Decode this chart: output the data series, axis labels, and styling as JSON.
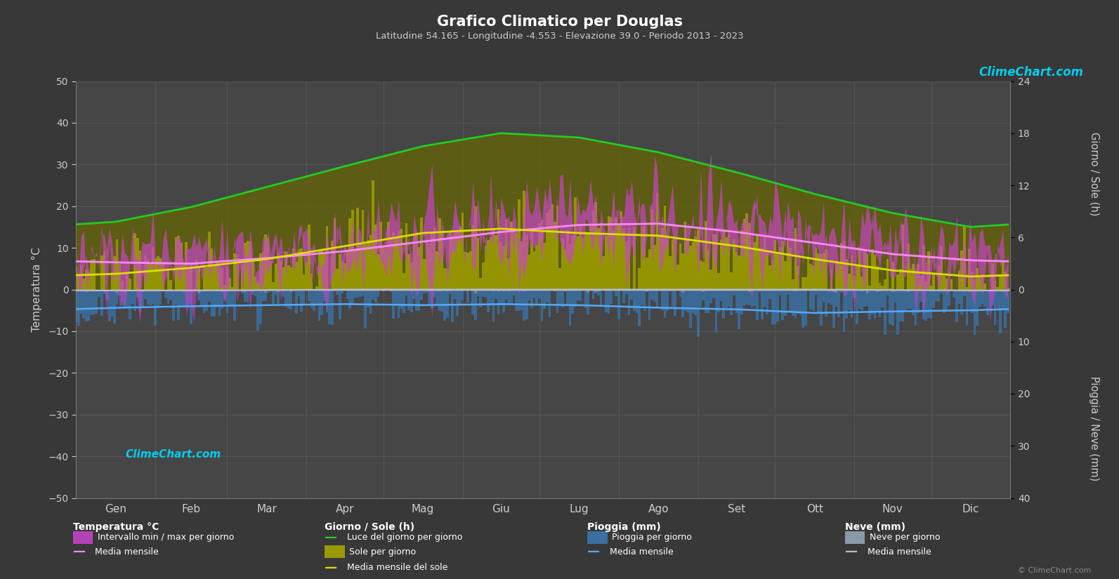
{
  "title": "Grafico Climatico per Douglas",
  "subtitle": "Latitudine 54.165 - Longitudine -4.553 - Elevazione 39.0 - Periodo 2013 - 2023",
  "bg_color": "#383838",
  "plot_bg": "#464646",
  "months": [
    "Gen",
    "Feb",
    "Mar",
    "Apr",
    "Mag",
    "Giu",
    "Lug",
    "Ago",
    "Set",
    "Ott",
    "Nov",
    "Dic"
  ],
  "days_per_month": [
    31,
    28,
    31,
    30,
    31,
    30,
    31,
    31,
    30,
    31,
    30,
    31
  ],
  "temp_ylim": [
    -50,
    50
  ],
  "temp_ticks": [
    -50,
    -40,
    -30,
    -20,
    -10,
    0,
    10,
    20,
    30,
    40,
    50
  ],
  "right_ticks_sun": [
    0,
    6,
    12,
    18,
    24
  ],
  "right_ticks_rain": [
    0,
    10,
    20,
    30,
    40
  ],
  "temp_mean": [
    6.5,
    6.2,
    7.5,
    9.2,
    11.5,
    13.8,
    15.5,
    15.8,
    13.8,
    11.2,
    8.5,
    7.0
  ],
  "temp_max_mean": [
    9.0,
    9.0,
    10.5,
    12.5,
    15.2,
    17.5,
    19.5,
    19.5,
    17.5,
    14.2,
    11.0,
    9.5
  ],
  "temp_min_mean": [
    3.8,
    3.5,
    4.5,
    6.0,
    8.0,
    10.5,
    12.5,
    12.5,
    10.5,
    8.0,
    5.5,
    4.2
  ],
  "daylight": [
    7.8,
    9.5,
    11.8,
    14.2,
    16.5,
    18.0,
    17.5,
    15.8,
    13.5,
    11.0,
    8.8,
    7.2
  ],
  "sunshine_mean": [
    1.8,
    2.5,
    3.5,
    5.0,
    6.5,
    7.0,
    6.5,
    6.2,
    5.0,
    3.5,
    2.2,
    1.5
  ],
  "rain_mean_mm": [
    3.5,
    3.2,
    3.0,
    2.8,
    3.0,
    2.8,
    3.0,
    3.5,
    3.8,
    4.5,
    4.2,
    4.0
  ],
  "snow_mean_mm": [
    0.2,
    0.2,
    0.1,
    0.0,
    0.0,
    0.0,
    0.0,
    0.0,
    0.0,
    0.0,
    0.1,
    0.2
  ],
  "noise_seed": 42,
  "temp_noise_std": 5.0,
  "rain_noise_std": 2.0,
  "sun_noise_std": 2.2,
  "snow_noise_std": 0.25,
  "sun_scale": 2.0833,
  "rain_scale": 1.25,
  "color_temp_fill_top": "#cc44cc",
  "color_temp_fill_bot": "#5588cc",
  "color_temp_line": "#ff88ff",
  "color_daylight_line": "#22cc22",
  "color_sunshine_bar": "#999900",
  "color_sunshine_bar_dark": "#666600",
  "color_sunshine_line": "#dddd00",
  "color_rain_bar": "#3a6fa0",
  "color_rain_line": "#55aaff",
  "color_snow_bar": "#8899aa",
  "color_snow_line": "#bbbbcc",
  "color_grid": "#5a5a5a",
  "color_text": "#cccccc",
  "color_logo": "#00ccee",
  "color_copyright": "#888888"
}
